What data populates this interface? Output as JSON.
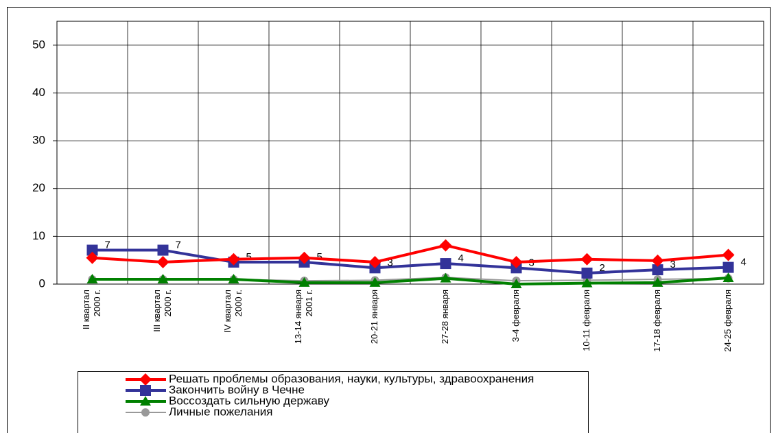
{
  "chart_data": {
    "type": "line",
    "categories": [
      [
        "II квартал",
        "2000 г."
      ],
      [
        "III квартал",
        "2000 г."
      ],
      [
        "IV квартал",
        "2000 г."
      ],
      [
        "13-14 января",
        "2001 г."
      ],
      [
        "20-21 января"
      ],
      [
        "27-28 января"
      ],
      [
        "3-4 февраля"
      ],
      [
        "10-11 февраля"
      ],
      [
        "17-18 февраля"
      ],
      [
        "24-25 февраля"
      ]
    ],
    "series": [
      {
        "name": "Решать проблемы образования, науки, культуры, здравоохранения",
        "color": "#ff0000",
        "marker": "diamond",
        "values": [
          5.5,
          4.6,
          5.2,
          5.5,
          4.6,
          8.1,
          4.6,
          5.2,
          4.9,
          6.1
        ]
      },
      {
        "name": "Закончить войну в Чечне",
        "color": "#333399",
        "marker": "square",
        "values": [
          7.1,
          7.1,
          4.6,
          4.6,
          3.4,
          4.3,
          3.4,
          2.3,
          3.0,
          3.5
        ],
        "value_labels": [
          "7",
          "7",
          "5",
          "5",
          "3",
          "4",
          "3",
          "2",
          "3",
          "4"
        ]
      },
      {
        "name": "Воссоздать сильную державу",
        "color": "#008000",
        "marker": "triangle",
        "values": [
          1,
          1,
          1,
          0.3,
          0.3,
          1.2,
          0,
          0.2,
          0.3,
          1.3
        ]
      },
      {
        "name": "Личные пожелания",
        "color": "#999999",
        "marker": "circle",
        "values": [
          1,
          1,
          1,
          0.7,
          0.8,
          1.4,
          0.7,
          0.8,
          1,
          1.2
        ]
      }
    ],
    "ylim": [
      0,
      55
    ],
    "yticks": [
      0,
      10,
      20,
      30,
      40,
      50
    ],
    "grid": true
  }
}
